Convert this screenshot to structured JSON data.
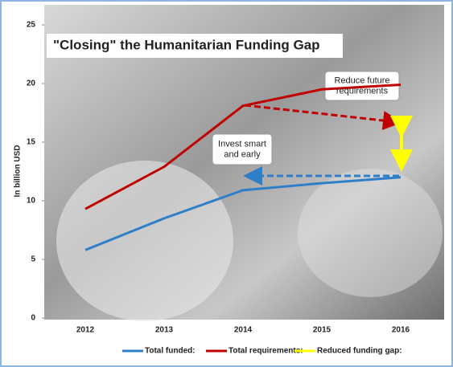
{
  "chart_data": {
    "type": "line",
    "title": "\"Closing\" the Humanitarian Funding Gap",
    "y_label": "In billion USD",
    "categories": [
      "2012",
      "2013",
      "2014",
      "2015",
      "2016"
    ],
    "series": [
      {
        "name": "Total funded:",
        "color": "#2f7fc8",
        "values": [
          5.8,
          8.5,
          10.9,
          11.5,
          12.0
        ]
      },
      {
        "name": "Total requirements:",
        "color": "#c00000",
        "values": [
          9.3,
          12.9,
          18.1,
          19.5,
          19.9
        ]
      }
    ],
    "gap_legend": {
      "name": "Reduced funding gap:",
      "color": "#ffff00"
    },
    "annotations": [
      "Reduce future requirements",
      "Invest smart and early"
    ],
    "ylim": [
      0,
      25
    ],
    "yticks": [
      0,
      5,
      10,
      15,
      20,
      25
    ]
  }
}
